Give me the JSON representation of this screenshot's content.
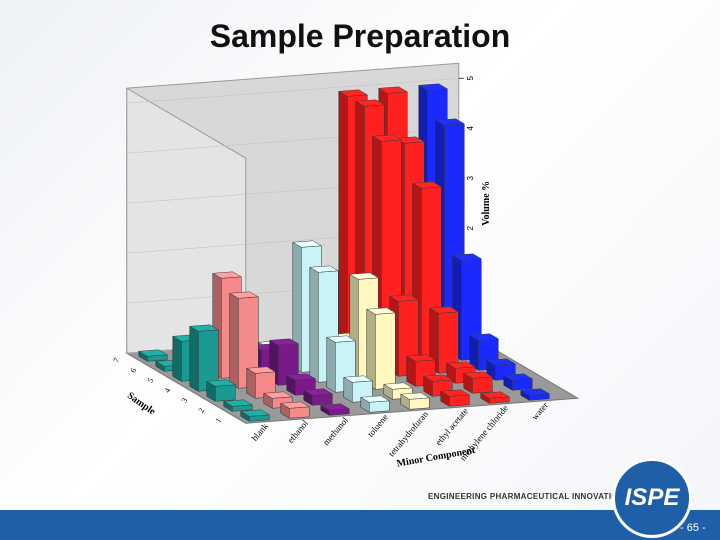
{
  "title": "Sample Preparation",
  "chart_data": {
    "type": "bar3d",
    "categories": [
      "blank",
      "ethanol",
      "methanol",
      "toluene",
      "tetrahydrofuran",
      "ethyl acetate",
      "methylene chloride",
      "water"
    ],
    "colors": [
      "#1a9a92",
      "#f48a8a",
      "#7a1a8a",
      "#c8f4f8",
      "#fff8c0",
      "#ff2020",
      "#ff2020",
      "#1a2aff"
    ],
    "series": [
      {
        "name": "1",
        "values": [
          0.1,
          0.2,
          0.1,
          0.2,
          0.2,
          0.2,
          0.1,
          0.1
        ]
      },
      {
        "name": "2",
        "values": [
          0.1,
          0.2,
          0.2,
          0.4,
          0.2,
          0.3,
          0.3,
          0.2
        ]
      },
      {
        "name": "3",
        "values": [
          0.3,
          0.5,
          0.3,
          1.0,
          1.5,
          0.5,
          0.3,
          0.3
        ]
      },
      {
        "name": "4",
        "values": [
          1.2,
          1.8,
          0.8,
          2.2,
          2.0,
          1.5,
          1.2,
          0.6
        ]
      },
      {
        "name": "5",
        "values": [
          0.8,
          2.0,
          0.5,
          2.5,
          0.6,
          4.5,
          3.5,
          2.0
        ]
      },
      {
        "name": "6",
        "values": [
          0.1,
          0.2,
          0.3,
          0.1,
          0.1,
          5.0,
          4.2,
          4.5
        ]
      },
      {
        "name": "7",
        "values": [
          0.1,
          0.1,
          0.1,
          0.1,
          0.1,
          5.0,
          5.0,
          5.0
        ]
      }
    ],
    "xlabel": "Minor Component",
    "ylabel": "Sample",
    "zlabel": "Volume %",
    "zlim": [
      0,
      5
    ],
    "zticks": [
      0,
      1,
      2,
      3,
      4,
      5
    ]
  },
  "footer": {
    "tagline": "ENGINEERING PHARMACEUTICAL INNOVATION",
    "logo": "ISPE",
    "page": "- 65 -"
  }
}
